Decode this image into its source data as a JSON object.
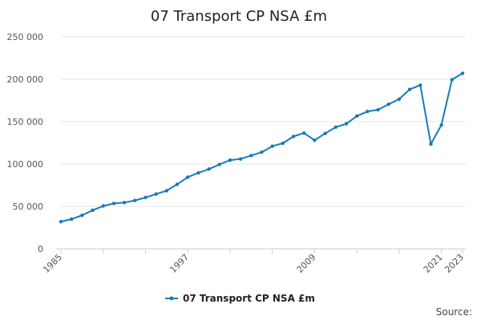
{
  "chart_data": {
    "type": "line",
    "title": "07 Transport CP NSA £m",
    "xlabel": "",
    "ylabel": "",
    "xlim": [
      1985,
      2023
    ],
    "ylim": [
      0,
      250000
    ],
    "y_ticks": [
      0,
      50000,
      100000,
      150000,
      200000,
      250000
    ],
    "y_tick_labels": [
      "0",
      "50 000",
      "100 000",
      "150 000",
      "200 000",
      "250 000"
    ],
    "x_tick_labels": [
      "1985",
      "1997",
      "2009",
      "2021",
      "2023"
    ],
    "x_tick_values": [
      1985,
      1997,
      2009,
      2021,
      2023
    ],
    "grid": true,
    "legend_position": "bottom-center",
    "series": [
      {
        "name": "07 Transport CP NSA £m",
        "color": "#1a7ab8",
        "x": [
          1985,
          1986,
          1987,
          1988,
          1989,
          1990,
          1991,
          1992,
          1993,
          1994,
          1995,
          1996,
          1997,
          1998,
          1999,
          2000,
          2001,
          2002,
          2003,
          2004,
          2005,
          2006,
          2007,
          2008,
          2009,
          2010,
          2011,
          2012,
          2013,
          2014,
          2015,
          2016,
          2017,
          2018,
          2019,
          2020,
          2021,
          2022,
          2023
        ],
        "values": [
          32000,
          35000,
          39500,
          45500,
          50500,
          53500,
          54500,
          57000,
          60500,
          64500,
          68500,
          76000,
          84500,
          89500,
          94000,
          99500,
          104500,
          106000,
          110000,
          114000,
          121000,
          124500,
          132500,
          136500,
          128000,
          136000,
          143500,
          147500,
          156500,
          162000,
          164000,
          170500,
          176500,
          188000,
          193000,
          123500,
          146000,
          199500,
          207000
        ]
      }
    ]
  },
  "source_label": "Source:"
}
